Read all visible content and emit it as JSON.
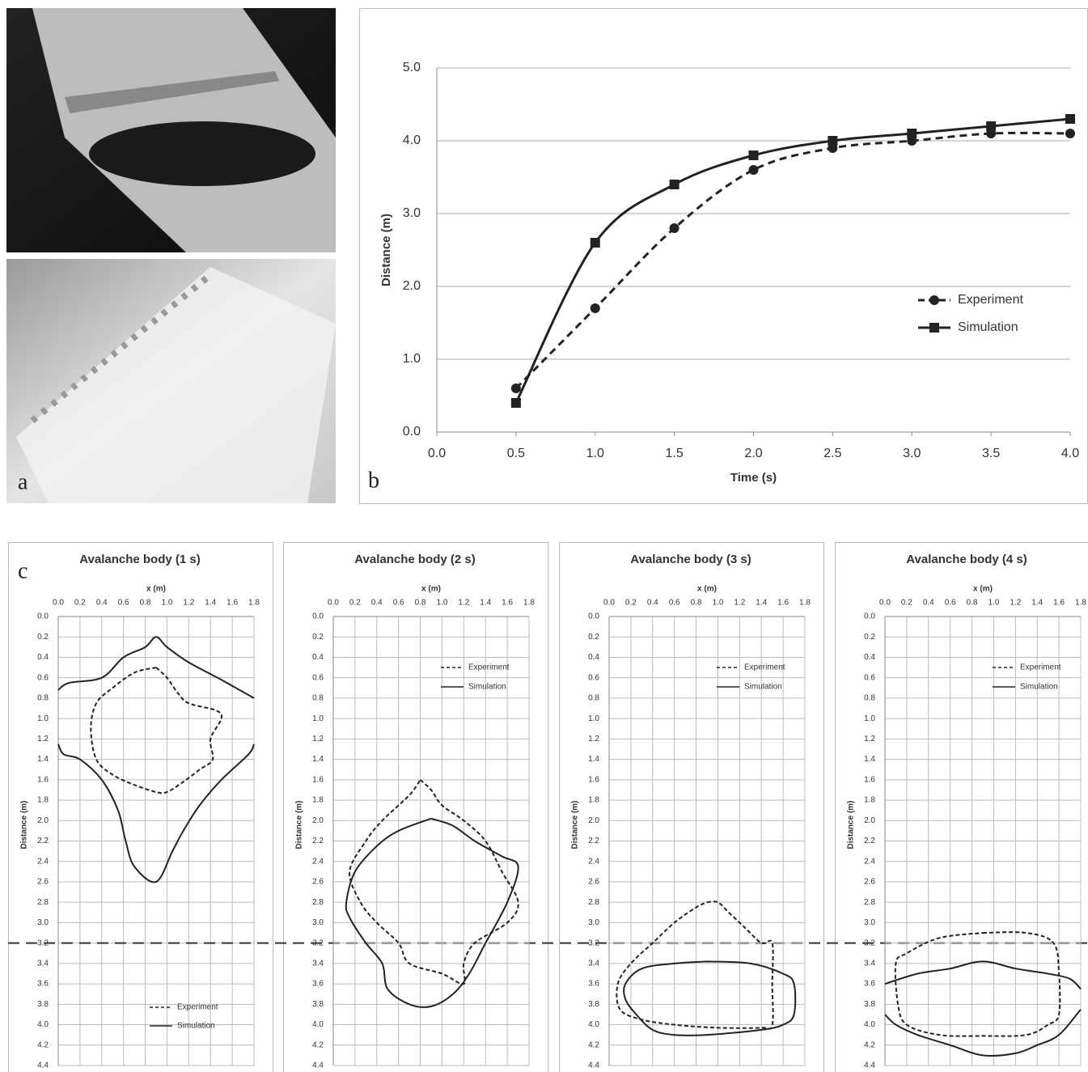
{
  "photos": {
    "label": "a"
  },
  "chart_data": [
    {
      "type": "line",
      "panel_label": "b",
      "x_label": "Time (s)",
      "y_label": "Distance (m)",
      "x": [
        0.5,
        1.0,
        1.5,
        2.0,
        2.5,
        3.0,
        3.5,
        4.0
      ],
      "series": [
        {
          "name": "Experiment",
          "color": "#222222",
          "linestyle": "dashed",
          "marker": "circle",
          "values": [
            0.6,
            1.7,
            2.8,
            3.6,
            3.9,
            4.0,
            4.1,
            4.1
          ]
        },
        {
          "name": "Simulation",
          "color": "#222222",
          "linestyle": "solid",
          "marker": "square",
          "values": [
            0.4,
            2.6,
            3.4,
            3.8,
            4.0,
            4.1,
            4.2,
            4.3
          ]
        }
      ],
      "xlim": [
        0,
        4
      ],
      "ylim": [
        0,
        5
      ],
      "xticks": [
        {
          "value": 0,
          "label": "0.0"
        },
        {
          "value": 0.5,
          "label": "0.5"
        },
        {
          "value": 1,
          "label": "1.0"
        },
        {
          "value": 1.5,
          "label": "1.5"
        },
        {
          "value": 2,
          "label": "2.0"
        },
        {
          "value": 2.5,
          "label": "2.5"
        },
        {
          "value": 3,
          "label": "3.0"
        },
        {
          "value": 3.5,
          "label": "3.5"
        },
        {
          "value": 4,
          "label": "4.0"
        }
      ],
      "yticks": [
        {
          "value": 0,
          "label": "0.0"
        },
        {
          "value": 1,
          "label": "1.0"
        },
        {
          "value": 2,
          "label": "2.0"
        },
        {
          "value": 3,
          "label": "3.0"
        },
        {
          "value": 4,
          "label": "4.0"
        },
        {
          "value": 5,
          "label": "5.0"
        }
      ],
      "grid": true,
      "legend": "center right"
    },
    {
      "type": "line",
      "panel_label": "c",
      "title": "Avalanche body (1 s)",
      "x_label": "x (m)",
      "y_label": "Distance (m)",
      "y_inverted": true,
      "hline": 3.2,
      "series": [
        {
          "name": "Experiment",
          "color": "#222222",
          "linestyle": "dashed",
          "x": [
            0.9,
            1.0,
            1.1,
            1.2,
            1.45,
            1.5,
            1.4,
            1.42,
            1.3,
            1.15,
            1.0,
            0.9,
            0.7,
            0.5,
            0.35,
            0.3,
            0.35,
            0.5,
            0.7,
            0.9
          ],
          "values": [
            0.5,
            0.6,
            0.75,
            0.85,
            0.92,
            1.0,
            1.2,
            1.4,
            1.5,
            1.62,
            1.72,
            1.72,
            1.65,
            1.55,
            1.4,
            1.1,
            0.85,
            0.7,
            0.55,
            0.5
          ]
        },
        {
          "name": "Simulation",
          "color": "#222222",
          "linestyle": "solid",
          "x": [
            0.0,
            0.1,
            0.4,
            0.6,
            0.8,
            0.9,
            1.0,
            1.2,
            1.5,
            1.8,
            null,
            1.8,
            1.75,
            1.5,
            1.3,
            1.15,
            1.05,
            0.9,
            0.7,
            0.62,
            0.55,
            0.4,
            0.2,
            0.05,
            0.0
          ],
          "values": [
            0.72,
            0.65,
            0.6,
            0.4,
            0.3,
            0.2,
            0.3,
            0.45,
            0.62,
            0.8,
            null,
            1.25,
            1.35,
            1.6,
            1.85,
            2.1,
            2.3,
            2.6,
            2.45,
            2.2,
            1.9,
            1.6,
            1.4,
            1.35,
            1.25
          ]
        }
      ],
      "xlim": [
        0,
        1.8
      ],
      "ylim": [
        0,
        4.4
      ],
      "xticks": [
        {
          "value": 0,
          "label": "0.0"
        },
        {
          "value": 0.2,
          "label": "0.2"
        },
        {
          "value": 0.4,
          "label": "0.4"
        },
        {
          "value": 0.6,
          "label": "0.6"
        },
        {
          "value": 0.8,
          "label": "0.8"
        },
        {
          "value": 1,
          "label": "1.0"
        },
        {
          "value": 1.2,
          "label": "1.2"
        },
        {
          "value": 1.4,
          "label": "1.4"
        },
        {
          "value": 1.6,
          "label": "1.6"
        },
        {
          "value": 1.8,
          "label": "1.8"
        }
      ],
      "yticks": [
        {
          "value": 0,
          "label": "0.0"
        },
        {
          "value": 0.2,
          "label": "0.2"
        },
        {
          "value": 0.4,
          "label": "0.4"
        },
        {
          "value": 0.6,
          "label": "0.6"
        },
        {
          "value": 0.8,
          "label": "0.8"
        },
        {
          "value": 1,
          "label": "1.0"
        },
        {
          "value": 1.2,
          "label": "1.2"
        },
        {
          "value": 1.4,
          "label": "1.4"
        },
        {
          "value": 1.6,
          "label": "1.6"
        },
        {
          "value": 1.8,
          "label": "1.8"
        },
        {
          "value": 2,
          "label": "2.0"
        },
        {
          "value": 2.2,
          "label": "2.2"
        },
        {
          "value": 2.4,
          "label": "2.4"
        },
        {
          "value": 2.6,
          "label": "2.6"
        },
        {
          "value": 2.8,
          "label": "2.8"
        },
        {
          "value": 3,
          "label": "3.0"
        },
        {
          "value": 3.2,
          "label": "3.2"
        },
        {
          "value": 3.4,
          "label": "3.4"
        },
        {
          "value": 3.6,
          "label": "3.6"
        },
        {
          "value": 3.8,
          "label": "3.8"
        },
        {
          "value": 4,
          "label": "4.0"
        },
        {
          "value": 4.2,
          "label": "4.2"
        },
        {
          "value": 4.4,
          "label": "4.4"
        }
      ],
      "grid": true,
      "legend": "lower center"
    },
    {
      "type": "line",
      "title": "Avalanche body (2 s)",
      "x_label": "x (m)",
      "y_label": "Distance (m)",
      "y_inverted": true,
      "series": [
        {
          "name": "Experiment",
          "color": "#222222",
          "linestyle": "dashed",
          "x": [
            0.8,
            0.9,
            1.0,
            1.2,
            1.4,
            1.55,
            1.7,
            1.6,
            1.3,
            1.2,
            1.2,
            1.0,
            0.7,
            0.6,
            0.4,
            0.25,
            0.15,
            0.3,
            0.45,
            0.7,
            0.8
          ],
          "values": [
            1.6,
            1.7,
            1.85,
            2.0,
            2.2,
            2.5,
            2.8,
            3.0,
            3.2,
            3.4,
            3.6,
            3.5,
            3.4,
            3.2,
            3.0,
            2.8,
            2.5,
            2.2,
            2.0,
            1.75,
            1.6
          ]
        },
        {
          "name": "Simulation",
          "color": "#222222",
          "linestyle": "solid",
          "x": [
            0.9,
            1.1,
            1.3,
            1.55,
            1.7,
            1.6,
            1.4,
            1.25,
            1.1,
            0.9,
            0.7,
            0.5,
            0.45,
            0.3,
            0.15,
            0.12,
            0.2,
            0.4,
            0.6,
            0.9
          ],
          "values": [
            1.98,
            2.05,
            2.2,
            2.35,
            2.45,
            2.8,
            3.2,
            3.5,
            3.7,
            3.82,
            3.8,
            3.65,
            3.4,
            3.2,
            2.95,
            2.8,
            2.5,
            2.25,
            2.1,
            1.98
          ]
        }
      ],
      "xlim": [
        0,
        1.8
      ],
      "ylim": [
        0,
        4.4
      ],
      "xticks": [
        {
          "value": 0,
          "label": "0.0"
        },
        {
          "value": 0.2,
          "label": "0.2"
        },
        {
          "value": 0.4,
          "label": "0.4"
        },
        {
          "value": 0.6,
          "label": "0.6"
        },
        {
          "value": 0.8,
          "label": "0.8"
        },
        {
          "value": 1,
          "label": "1.0"
        },
        {
          "value": 1.2,
          "label": "1.2"
        },
        {
          "value": 1.4,
          "label": "1.4"
        },
        {
          "value": 1.6,
          "label": "1.6"
        },
        {
          "value": 1.8,
          "label": "1.8"
        }
      ],
      "yticks": [
        {
          "value": 0,
          "label": "0.0"
        },
        {
          "value": 0.2,
          "label": "0.2"
        },
        {
          "value": 0.4,
          "label": "0.4"
        },
        {
          "value": 0.6,
          "label": "0.6"
        },
        {
          "value": 0.8,
          "label": "0.8"
        },
        {
          "value": 1,
          "label": "1.0"
        },
        {
          "value": 1.2,
          "label": "1.2"
        },
        {
          "value": 1.4,
          "label": "1.4"
        },
        {
          "value": 1.6,
          "label": "1.6"
        },
        {
          "value": 1.8,
          "label": "1.8"
        },
        {
          "value": 2,
          "label": "2.0"
        },
        {
          "value": 2.2,
          "label": "2.2"
        },
        {
          "value": 2.4,
          "label": "2.4"
        },
        {
          "value": 2.6,
          "label": "2.6"
        },
        {
          "value": 2.8,
          "label": "2.8"
        },
        {
          "value": 3,
          "label": "3.0"
        },
        {
          "value": 3.2,
          "label": "3.2"
        },
        {
          "value": 3.4,
          "label": "3.4"
        },
        {
          "value": 3.6,
          "label": "3.6"
        },
        {
          "value": 3.8,
          "label": "3.8"
        },
        {
          "value": 4,
          "label": "4.0"
        },
        {
          "value": 4.2,
          "label": "4.2"
        },
        {
          "value": 4.4,
          "label": "4.4"
        }
      ],
      "grid": true,
      "legend": "upper right"
    },
    {
      "type": "line",
      "title": "Avalanche body (3 s)",
      "x_label": "x (m)",
      "y_label": "Distance (m)",
      "y_inverted": true,
      "series": [
        {
          "name": "Experiment",
          "color": "#222222",
          "linestyle": "dashed",
          "x": [
            0.9,
            1.0,
            1.1,
            1.25,
            1.4,
            1.5,
            1.5,
            1.5,
            1.4,
            1.0,
            0.6,
            0.3,
            0.1,
            0.08,
            0.2,
            0.4,
            0.6,
            0.8,
            0.9
          ],
          "values": [
            2.8,
            2.8,
            2.9,
            3.05,
            3.2,
            3.2,
            3.6,
            4.0,
            4.03,
            4.03,
            4.0,
            3.95,
            3.85,
            3.6,
            3.4,
            3.2,
            3.0,
            2.85,
            2.8
          ]
        },
        {
          "name": "Simulation",
          "color": "#222222",
          "linestyle": "solid",
          "x": [
            0.9,
            1.3,
            1.6,
            1.7,
            1.7,
            1.6,
            1.4,
            0.9,
            0.6,
            0.4,
            0.25,
            0.15,
            0.15,
            0.3,
            0.6,
            0.9
          ],
          "values": [
            3.38,
            3.4,
            3.5,
            3.6,
            3.9,
            4.0,
            4.05,
            4.1,
            4.1,
            4.05,
            3.9,
            3.75,
            3.6,
            3.45,
            3.4,
            3.38
          ]
        }
      ],
      "xlim": [
        0,
        1.8
      ],
      "ylim": [
        0,
        4.4
      ],
      "xticks": [
        {
          "value": 0,
          "label": "0.0"
        },
        {
          "value": 0.2,
          "label": "0.2"
        },
        {
          "value": 0.4,
          "label": "0.4"
        },
        {
          "value": 0.6,
          "label": "0.6"
        },
        {
          "value": 0.8,
          "label": "0.8"
        },
        {
          "value": 1,
          "label": "1.0"
        },
        {
          "value": 1.2,
          "label": "1.2"
        },
        {
          "value": 1.4,
          "label": "1.4"
        },
        {
          "value": 1.6,
          "label": "1.6"
        },
        {
          "value": 1.8,
          "label": "1.8"
        }
      ],
      "yticks": [
        {
          "value": 0,
          "label": "0.0"
        },
        {
          "value": 0.2,
          "label": "0.2"
        },
        {
          "value": 0.4,
          "label": "0.4"
        },
        {
          "value": 0.6,
          "label": "0.6"
        },
        {
          "value": 0.8,
          "label": "0.8"
        },
        {
          "value": 1,
          "label": "1.0"
        },
        {
          "value": 1.2,
          "label": "1.2"
        },
        {
          "value": 1.4,
          "label": "1.4"
        },
        {
          "value": 1.6,
          "label": "1.6"
        },
        {
          "value": 1.8,
          "label": "1.8"
        },
        {
          "value": 2,
          "label": "2.0"
        },
        {
          "value": 2.2,
          "label": "2.2"
        },
        {
          "value": 2.4,
          "label": "2.4"
        },
        {
          "value": 2.6,
          "label": "2.6"
        },
        {
          "value": 2.8,
          "label": "2.8"
        },
        {
          "value": 3,
          "label": "3.0"
        },
        {
          "value": 3.2,
          "label": "3.2"
        },
        {
          "value": 3.4,
          "label": "3.4"
        },
        {
          "value": 3.6,
          "label": "3.6"
        },
        {
          "value": 3.8,
          "label": "3.8"
        },
        {
          "value": 4,
          "label": "4.0"
        },
        {
          "value": 4.2,
          "label": "4.2"
        },
        {
          "value": 4.4,
          "label": "4.4"
        }
      ],
      "grid": true,
      "legend": "upper right"
    },
    {
      "type": "line",
      "title": "Avalanche body (4 s)",
      "x_label": "x (m)",
      "y_label": "Distance (m)",
      "y_inverted": true,
      "series": [
        {
          "name": "Experiment",
          "color": "#222222",
          "linestyle": "dashed",
          "x": [
            0.9,
            1.3,
            1.55,
            1.6,
            1.6,
            1.5,
            1.3,
            0.9,
            0.5,
            0.2,
            0.12,
            0.1,
            0.2,
            0.5,
            0.9
          ],
          "values": [
            3.1,
            3.1,
            3.2,
            3.5,
            3.9,
            4.0,
            4.1,
            4.11,
            4.1,
            4.0,
            3.8,
            3.4,
            3.3,
            3.15,
            3.1
          ]
        },
        {
          "name": "Simulation",
          "color": "#222222",
          "linestyle": "solid",
          "x": [
            0.0,
            0.3,
            0.6,
            0.9,
            1.2,
            1.5,
            1.7,
            1.8,
            null,
            1.8,
            1.6,
            1.4,
            1.2,
            0.9,
            0.6,
            0.3,
            0.1,
            0.0
          ],
          "values": [
            3.6,
            3.5,
            3.45,
            3.38,
            3.45,
            3.5,
            3.55,
            3.65,
            null,
            3.85,
            4.1,
            4.2,
            4.28,
            4.3,
            4.2,
            4.1,
            4.0,
            3.9
          ]
        }
      ],
      "xlim": [
        0,
        1.8
      ],
      "ylim": [
        0,
        4.4
      ],
      "xticks": [
        {
          "value": 0,
          "label": "0.0"
        },
        {
          "value": 0.2,
          "label": "0.2"
        },
        {
          "value": 0.4,
          "label": "0.4"
        },
        {
          "value": 0.6,
          "label": "0.6"
        },
        {
          "value": 0.8,
          "label": "0.8"
        },
        {
          "value": 1,
          "label": "1.0"
        },
        {
          "value": 1.2,
          "label": "1.2"
        },
        {
          "value": 1.4,
          "label": "1.4"
        },
        {
          "value": 1.6,
          "label": "1.6"
        },
        {
          "value": 1.8,
          "label": "1.8"
        }
      ],
      "yticks": [
        {
          "value": 0,
          "label": "0.0"
        },
        {
          "value": 0.2,
          "label": "0.2"
        },
        {
          "value": 0.4,
          "label": "0.4"
        },
        {
          "value": 0.6,
          "label": "0.6"
        },
        {
          "value": 0.8,
          "label": "0.8"
        },
        {
          "value": 1,
          "label": "1.0"
        },
        {
          "value": 1.2,
          "label": "1.2"
        },
        {
          "value": 1.4,
          "label": "1.4"
        },
        {
          "value": 1.6,
          "label": "1.6"
        },
        {
          "value": 1.8,
          "label": "1.8"
        },
        {
          "value": 2,
          "label": "2.0"
        },
        {
          "value": 2.2,
          "label": "2.2"
        },
        {
          "value": 2.4,
          "label": "2.4"
        },
        {
          "value": 2.6,
          "label": "2.6"
        },
        {
          "value": 2.8,
          "label": "2.8"
        },
        {
          "value": 3,
          "label": "3.0"
        },
        {
          "value": 3.2,
          "label": "3.2"
        },
        {
          "value": 3.4,
          "label": "3.4"
        },
        {
          "value": 3.6,
          "label": "3.6"
        },
        {
          "value": 3.8,
          "label": "3.8"
        },
        {
          "value": 4,
          "label": "4.0"
        },
        {
          "value": 4.2,
          "label": "4.2"
        },
        {
          "value": 4.4,
          "label": "4.4"
        }
      ],
      "grid": true,
      "legend": "upper right"
    }
  ]
}
